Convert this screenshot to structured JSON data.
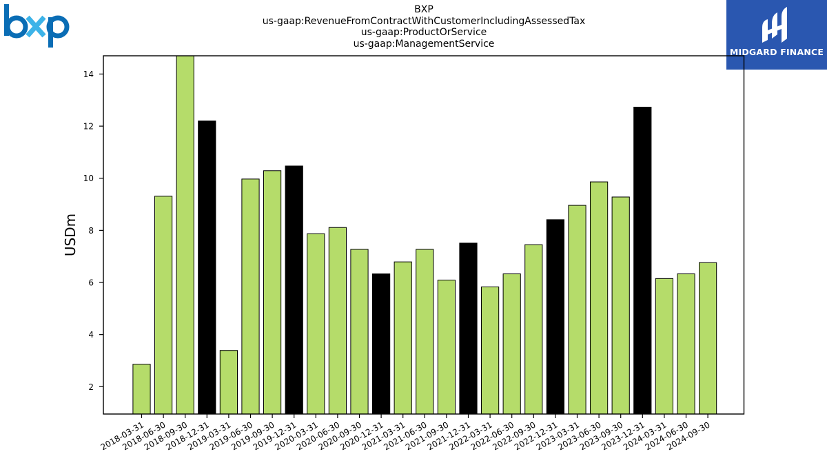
{
  "header": {
    "title_lines": [
      "BXP",
      "us-gaap:RevenueFromContractWithCustomerIncludingAssessedTax",
      "us-gaap:ProductOrService",
      "us-gaap:ManagementService"
    ]
  },
  "logos": {
    "left": {
      "text": "bxp",
      "colors": {
        "b": "#0a6db5",
        "x": "#3db3e8",
        "p": "#0a6db5"
      }
    },
    "right": {
      "text": "MIDGARD FINANCE",
      "background": "#2a57b0",
      "icon": "midgard-logo-icon"
    }
  },
  "chart_data": {
    "type": "bar",
    "title": "",
    "xlabel": "",
    "ylabel": "USDm",
    "ylim": [
      0.95,
      14.7
    ],
    "yticks": [
      2,
      4,
      6,
      8,
      10,
      12,
      14
    ],
    "grid": false,
    "legend": "none",
    "colors": {
      "quarter": "#b5dc6a",
      "year_end": "#000000",
      "edge": "#000000"
    },
    "categories": [
      "2018-03-31",
      "2018-06-30",
      "2018-09-30",
      "2018-12-31",
      "2019-03-31",
      "2019-06-30",
      "2019-09-30",
      "2019-12-31",
      "2020-03-31",
      "2020-06-30",
      "2020-09-30",
      "2020-12-31",
      "2021-03-31",
      "2021-06-30",
      "2021-09-30",
      "2021-12-31",
      "2022-03-31",
      "2022-06-30",
      "2022-09-30",
      "2022-12-31",
      "2023-03-31",
      "2023-06-30",
      "2023-09-30",
      "2023-12-31",
      "2024-03-31",
      "2024-06-30",
      "2024-09-30"
    ],
    "values": [
      2.86,
      9.31,
      14.75,
      12.2,
      3.39,
      9.97,
      10.29,
      10.47,
      7.87,
      8.11,
      7.27,
      6.33,
      6.79,
      7.27,
      6.09,
      7.51,
      5.83,
      6.33,
      7.45,
      8.41,
      8.96,
      9.86,
      9.28,
      12.73,
      6.15,
      6.33,
      6.76
    ],
    "year_end": [
      false,
      false,
      false,
      true,
      false,
      false,
      false,
      true,
      false,
      false,
      false,
      true,
      false,
      false,
      false,
      true,
      false,
      false,
      false,
      true,
      false,
      false,
      false,
      true,
      false,
      false,
      false
    ]
  }
}
